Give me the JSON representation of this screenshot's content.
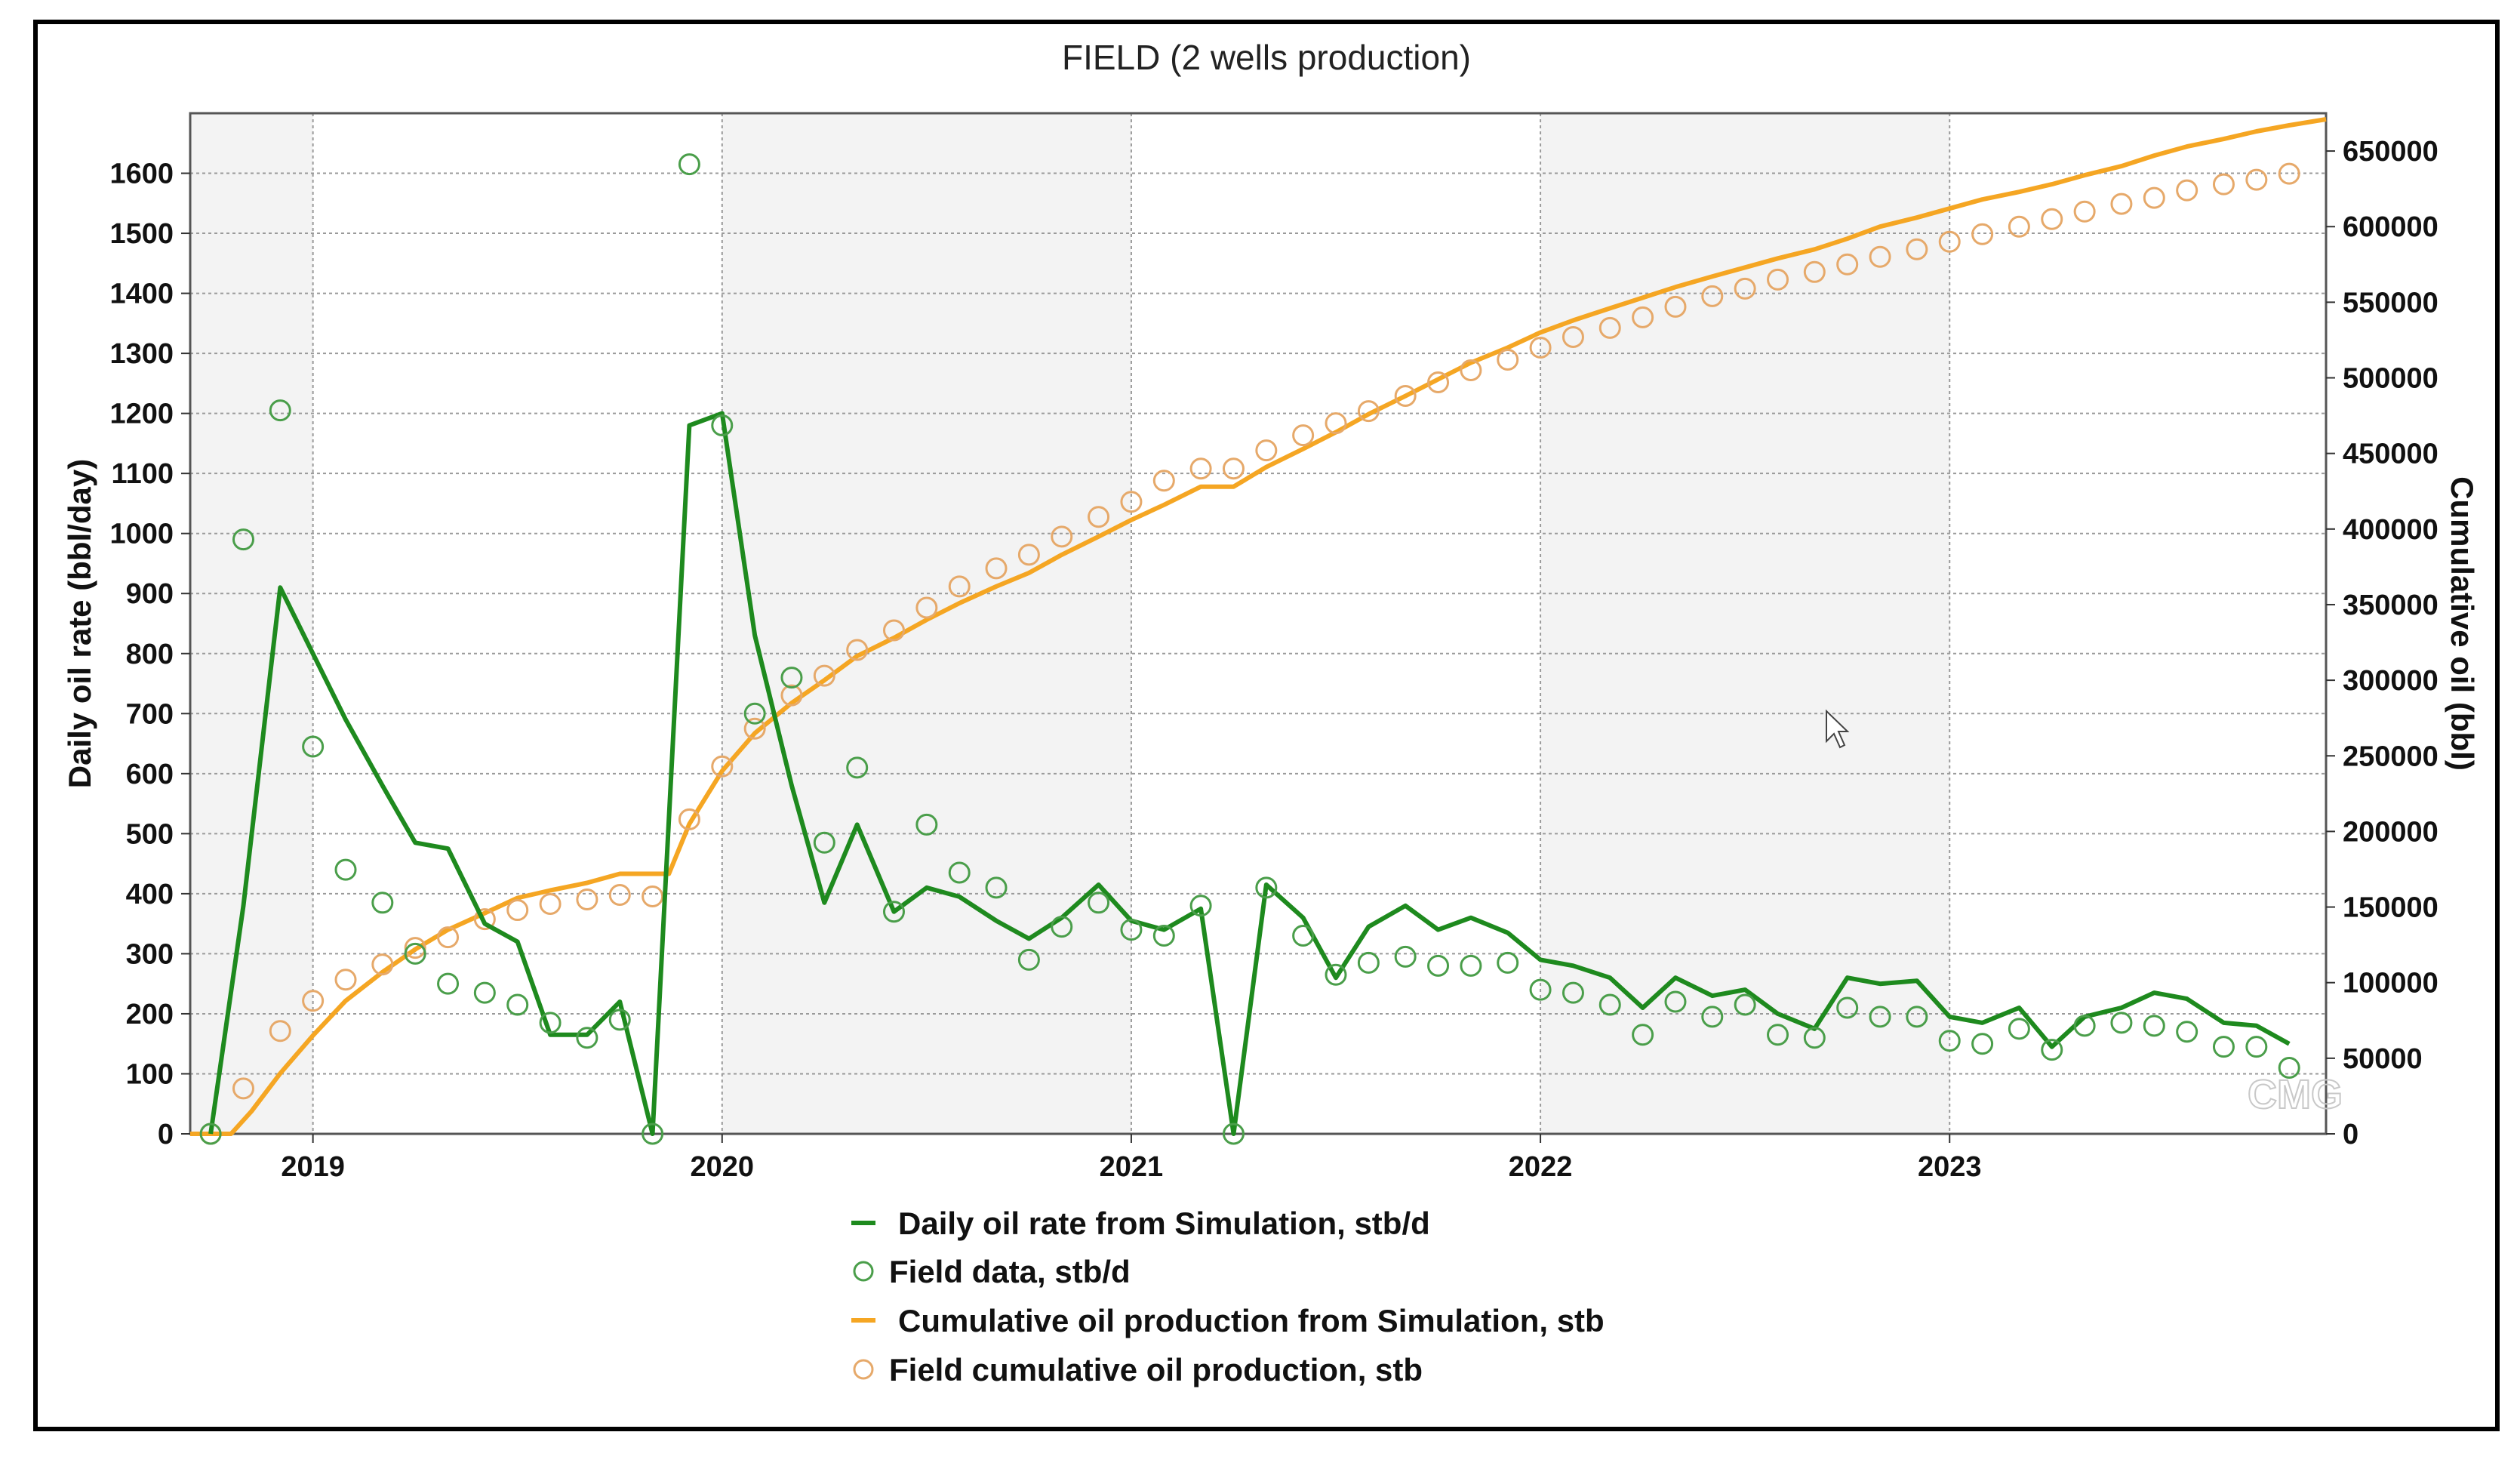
{
  "chart_data": {
    "type": "line",
    "title": "FIELD (2 wells production)",
    "ylabel": "Daily oil rate (bbl/day)",
    "y2label": "Cumulative oil (bbl)",
    "xlabel": "",
    "xlim": [
      2018.7,
      2023.92
    ],
    "ylim": [
      0,
      1700
    ],
    "y2lim": [
      0,
      675000
    ],
    "x_ticks": [
      2019,
      2020,
      2021,
      2022,
      2023
    ],
    "x_tick_labels": [
      "2019",
      "2020",
      "2021",
      "2022",
      "2023"
    ],
    "y_ticks": [
      0,
      100,
      200,
      300,
      400,
      500,
      600,
      700,
      800,
      900,
      1000,
      1100,
      1200,
      1300,
      1400,
      1500,
      1600
    ],
    "y_tick_labels": [
      "0",
      "100",
      "200",
      "300",
      "400",
      "500",
      "600",
      "700",
      "800",
      "900",
      "1000",
      "1100",
      "1200",
      "1300",
      "1400",
      "1500",
      "1600"
    ],
    "y2_ticks": [
      0,
      50000,
      100000,
      150000,
      200000,
      250000,
      300000,
      350000,
      400000,
      450000,
      500000,
      550000,
      600000,
      650000
    ],
    "y2_tick_labels": [
      "0",
      "50000",
      "100000",
      "150000",
      "200000",
      "250000",
      "300000",
      "350000",
      "400000",
      "450000",
      "500000",
      "550000",
      "600000",
      "650000"
    ],
    "grid": true,
    "legend_position": "bottom-center",
    "watermark": "CMG",
    "series": [
      {
        "name": "Daily oil rate from Simulation, stb/d",
        "kind": "line",
        "axis": "left",
        "color": "#1e8a1e",
        "x": [
          2018.75,
          2018.83,
          2018.92,
          2019.0,
          2019.08,
          2019.17,
          2019.25,
          2019.33,
          2019.42,
          2019.5,
          2019.58,
          2019.67,
          2019.75,
          2019.83,
          2019.92,
          2020.0,
          2020.08,
          2020.17,
          2020.25,
          2020.33,
          2020.42,
          2020.5,
          2020.58,
          2020.67,
          2020.75,
          2020.83,
          2020.92,
          2021.0,
          2021.08,
          2021.17,
          2021.25,
          2021.33,
          2021.42,
          2021.5,
          2021.58,
          2021.67,
          2021.75,
          2021.83,
          2021.92,
          2022.0,
          2022.08,
          2022.17,
          2022.25,
          2022.33,
          2022.42,
          2022.5,
          2022.58,
          2022.67,
          2022.75,
          2022.83,
          2022.92,
          2023.0,
          2023.08,
          2023.17,
          2023.25,
          2023.33,
          2023.42,
          2023.5,
          2023.58,
          2023.67,
          2023.75,
          2023.83
        ],
        "values": [
          0,
          380,
          910,
          800,
          690,
          580,
          485,
          475,
          350,
          320,
          165,
          165,
          220,
          0,
          1180,
          1200,
          830,
          580,
          385,
          515,
          370,
          410,
          395,
          355,
          325,
          360,
          415,
          355,
          340,
          375,
          0,
          415,
          360,
          260,
          345,
          380,
          340,
          360,
          335,
          290,
          280,
          260,
          210,
          260,
          230,
          240,
          200,
          175,
          260,
          250,
          255,
          195,
          185,
          210,
          145,
          195,
          210,
          235,
          225,
          185,
          180,
          150
        ]
      },
      {
        "name": "Field data, stb/d",
        "kind": "scatter",
        "axis": "left",
        "color": "#4a9e4a",
        "x": [
          2018.75,
          2018.83,
          2018.92,
          2019.0,
          2019.08,
          2019.17,
          2019.25,
          2019.33,
          2019.42,
          2019.5,
          2019.58,
          2019.67,
          2019.75,
          2019.83,
          2019.92,
          2020.0,
          2020.08,
          2020.17,
          2020.25,
          2020.33,
          2020.42,
          2020.5,
          2020.58,
          2020.67,
          2020.75,
          2020.83,
          2020.92,
          2021.0,
          2021.08,
          2021.17,
          2021.25,
          2021.33,
          2021.42,
          2021.5,
          2021.58,
          2021.67,
          2021.75,
          2021.83,
          2021.92,
          2022.0,
          2022.08,
          2022.17,
          2022.25,
          2022.33,
          2022.42,
          2022.5,
          2022.58,
          2022.67,
          2022.75,
          2022.83,
          2022.92,
          2023.0,
          2023.08,
          2023.17,
          2023.25,
          2023.33,
          2023.42,
          2023.5,
          2023.58,
          2023.67,
          2023.75,
          2023.83
        ],
        "values": [
          0,
          990,
          1205,
          645,
          440,
          385,
          300,
          250,
          235,
          215,
          185,
          160,
          190,
          0,
          1615,
          1180,
          700,
          760,
          485,
          610,
          370,
          515,
          435,
          410,
          290,
          345,
          385,
          340,
          330,
          380,
          0,
          410,
          330,
          265,
          285,
          295,
          280,
          280,
          285,
          240,
          235,
          215,
          165,
          220,
          195,
          215,
          165,
          160,
          210,
          195,
          195,
          155,
          150,
          175,
          140,
          180,
          185,
          180,
          170,
          145,
          145,
          110
        ]
      },
      {
        "name": "Cumulative oil production from Simulation, stb",
        "kind": "line",
        "axis": "right",
        "color": "#f5a623",
        "x": [
          2018.7,
          2018.8,
          2018.85,
          2018.92,
          2019.0,
          2019.08,
          2019.17,
          2019.25,
          2019.33,
          2019.42,
          2019.5,
          2019.58,
          2019.67,
          2019.75,
          2019.83,
          2019.87,
          2019.92,
          2020.0,
          2020.08,
          2020.17,
          2020.25,
          2020.33,
          2020.42,
          2020.5,
          2020.58,
          2020.67,
          2020.75,
          2020.83,
          2020.92,
          2021.0,
          2021.08,
          2021.17,
          2021.25,
          2021.33,
          2021.42,
          2021.5,
          2021.58,
          2021.67,
          2021.75,
          2021.83,
          2021.92,
          2022.0,
          2022.08,
          2022.17,
          2022.25,
          2022.33,
          2022.42,
          2022.5,
          2022.58,
          2022.67,
          2022.75,
          2022.83,
          2022.92,
          2023.0,
          2023.08,
          2023.17,
          2023.25,
          2023.33,
          2023.42,
          2023.5,
          2023.58,
          2023.67,
          2023.75,
          2023.83,
          2023.92
        ],
        "values": [
          0,
          0,
          15000,
          40000,
          65000,
          88000,
          107000,
          122000,
          135000,
          146000,
          156000,
          161000,
          166000,
          172000,
          172000,
          172000,
          205000,
          240000,
          265000,
          285000,
          300000,
          316000,
          328000,
          340000,
          351000,
          362000,
          371000,
          383000,
          395000,
          406000,
          416000,
          428000,
          428000,
          441000,
          453000,
          464000,
          476000,
          488000,
          499000,
          510000,
          520000,
          530000,
          538000,
          546000,
          553000,
          560000,
          567000,
          573000,
          579000,
          585000,
          592000,
          600000,
          606000,
          612000,
          618000,
          623000,
          628000,
          634000,
          640000,
          647000,
          653000,
          658000,
          663000,
          667000,
          671000
        ]
      },
      {
        "name": "Field cumulative oil production, stb",
        "kind": "scatter",
        "axis": "right",
        "color": "#e6a96a",
        "x": [
          2018.75,
          2018.83,
          2018.92,
          2019.0,
          2019.08,
          2019.17,
          2019.25,
          2019.33,
          2019.42,
          2019.5,
          2019.58,
          2019.67,
          2019.75,
          2019.83,
          2019.92,
          2020.0,
          2020.08,
          2020.17,
          2020.25,
          2020.33,
          2020.42,
          2020.5,
          2020.58,
          2020.67,
          2020.75,
          2020.83,
          2020.92,
          2021.0,
          2021.08,
          2021.17,
          2021.25,
          2021.33,
          2021.42,
          2021.5,
          2021.58,
          2021.67,
          2021.75,
          2021.83,
          2021.92,
          2022.0,
          2022.08,
          2022.17,
          2022.25,
          2022.33,
          2022.42,
          2022.5,
          2022.58,
          2022.67,
          2022.75,
          2022.83,
          2022.92,
          2023.0,
          2023.08,
          2023.17,
          2023.25,
          2023.33,
          2023.42,
          2023.5,
          2023.58,
          2023.67,
          2023.75,
          2023.83
        ],
        "values": [
          0,
          30000,
          68000,
          88000,
          102000,
          112000,
          123000,
          130000,
          142000,
          148000,
          152000,
          155000,
          158000,
          157000,
          208000,
          243000,
          268000,
          290000,
          303000,
          320000,
          333000,
          348000,
          362000,
          374000,
          383000,
          395000,
          408000,
          418000,
          432000,
          440000,
          440000,
          452000,
          462000,
          470000,
          478000,
          488000,
          497000,
          505000,
          512000,
          520000,
          527000,
          533000,
          540000,
          547000,
          554000,
          559000,
          565000,
          570000,
          575000,
          580000,
          585000,
          590000,
          595000,
          600000,
          605000,
          610000,
          615000,
          619000,
          624000,
          628000,
          631000,
          635000
        ]
      }
    ]
  }
}
